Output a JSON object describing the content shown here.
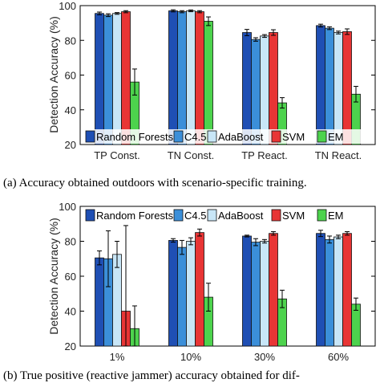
{
  "chart_data": [
    {
      "type": "bar",
      "ylabel": "Detection Accuracy (%)",
      "ylim": [
        20,
        100
      ],
      "yticks": [
        20,
        40,
        60,
        80,
        100
      ],
      "categories": [
        "TP Const.",
        "TN Const.",
        "TP React.",
        "TN React."
      ],
      "legend_placement": "bottom-inside",
      "series": [
        {
          "name": "Random Forests",
          "color": "#1f4fb4",
          "values": [
            95.5,
            97,
            84.5,
            88.5
          ],
          "errors": [
            0.8,
            0.6,
            1.8,
            0.8
          ]
        },
        {
          "name": "C4.5",
          "color": "#3b8fd9",
          "values": [
            94.5,
            96.5,
            80.5,
            87
          ],
          "errors": [
            0.8,
            0.6,
            1.0,
            0.8
          ]
        },
        {
          "name": "AdaBoost",
          "color": "#c8e6f7",
          "values": [
            95.5,
            97,
            82.5,
            84.5
          ],
          "errors": [
            0.5,
            0.5,
            0.8,
            0.8
          ]
        },
        {
          "name": "SVM",
          "color": "#e83535",
          "values": [
            96.5,
            96.5,
            84.5,
            85
          ],
          "errors": [
            0.6,
            0.6,
            1.6,
            1.6
          ]
        },
        {
          "name": "EM",
          "color": "#4dd34d",
          "values": [
            56,
            91,
            44,
            49
          ],
          "errors": [
            7.5,
            2.5,
            3.0,
            4.5
          ]
        }
      ],
      "caption": "(a) Accuracy obtained outdoors with scenario-specific training."
    },
    {
      "type": "bar",
      "ylabel": "Detection Accuracy (%)",
      "ylim": [
        20,
        100
      ],
      "yticks": [
        20,
        40,
        60,
        80,
        100
      ],
      "categories": [
        "1%",
        "10%",
        "30%",
        "60%"
      ],
      "legend_placement": "top-inside",
      "series": [
        {
          "name": "Random Forests",
          "color": "#1f4fb4",
          "values": [
            70.5,
            80.5,
            83,
            84.5
          ],
          "errors": [
            4.0,
            1.0,
            0.5,
            1.8
          ]
        },
        {
          "name": "C4.5",
          "color": "#3b8fd9",
          "values": [
            70,
            76.5,
            79.5,
            81
          ],
          "errors": [
            16,
            4.0,
            2.0,
            2.0
          ]
        },
        {
          "name": "AdaBoost",
          "color": "#c8e6f7",
          "values": [
            72.5,
            80,
            80,
            82.5
          ],
          "errors": [
            7.5,
            2.0,
            1.0,
            1.0
          ]
        },
        {
          "name": "SVM",
          "color": "#e83535",
          "values": [
            40,
            85,
            84.5,
            84.5
          ],
          "errors": [
            49,
            2.0,
            1.0,
            1.0
          ]
        },
        {
          "name": "EM",
          "color": "#4dd34d",
          "values": [
            30,
            48,
            47,
            44
          ],
          "errors": [
            13,
            8.0,
            5.0,
            3.5
          ]
        }
      ],
      "caption": "(b) True positive (reactive jammer) accuracy obtained for dif-"
    }
  ]
}
